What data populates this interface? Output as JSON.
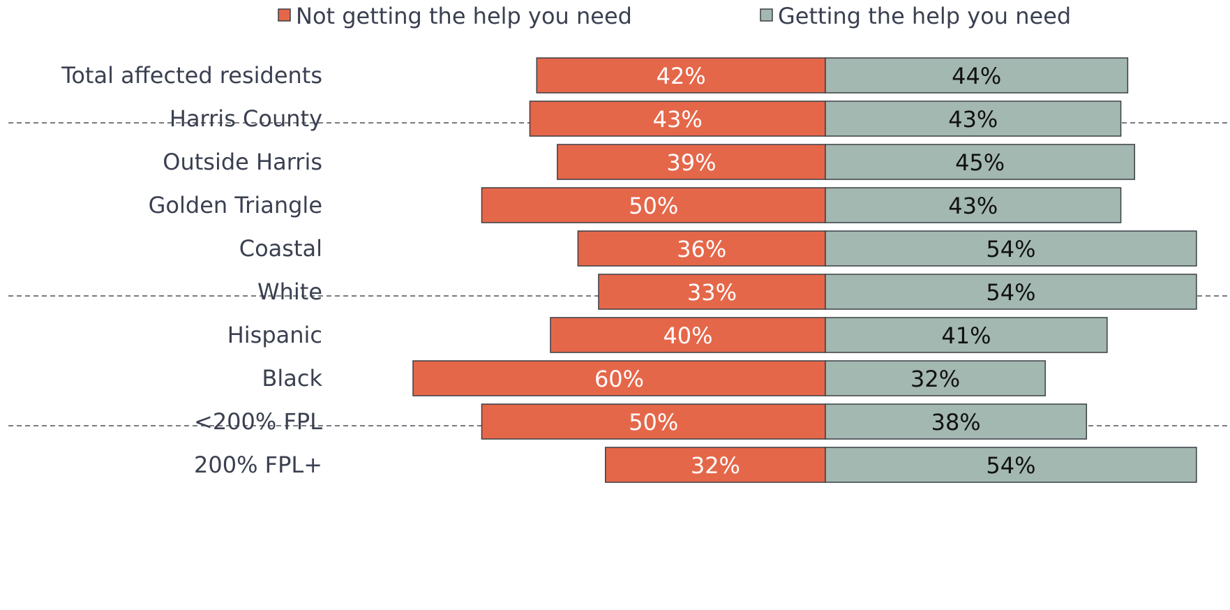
{
  "chart_data": {
    "type": "bar",
    "orientation": "horizontal-diverging",
    "legend": {
      "position": "top",
      "items": [
        {
          "label": "Not getting the help you need",
          "color": "#e5674a"
        },
        {
          "label": "Getting the help you need",
          "color": "#a3b8b0"
        }
      ]
    },
    "categories": [
      "Total affected residents",
      "Harris County",
      "Outside Harris",
      "Golden Triangle",
      "Coastal",
      "White",
      "Hispanic",
      "Black",
      "<200% FPL",
      "200% FPL+"
    ],
    "groups": [
      [
        0
      ],
      [
        1,
        2,
        3,
        4
      ],
      [
        5,
        6,
        7
      ],
      [
        8,
        9
      ]
    ],
    "series": [
      {
        "name": "Not getting the help you need",
        "values": [
          42,
          43,
          39,
          50,
          36,
          33,
          40,
          60,
          50,
          32
        ],
        "labels": [
          "42%",
          "43%",
          "39%",
          "50%",
          "36%",
          "33%",
          "40%",
          "60%",
          "50%",
          "32%"
        ]
      },
      {
        "name": "Getting the help you need",
        "values": [
          44,
          43,
          45,
          43,
          54,
          54,
          41,
          32,
          38,
          54
        ],
        "labels": [
          "44%",
          "43%",
          "45%",
          "43%",
          "54%",
          "54%",
          "41%",
          "32%",
          "38%",
          "54%"
        ]
      }
    ],
    "unit": "%",
    "grid": false,
    "group_separators": "dashed"
  },
  "colors": {
    "negative": "#e5674a",
    "positive": "#a3b8b0",
    "bar_stroke": "#3a3f44",
    "label_text": "#3a4050",
    "separator": "#4a4f57"
  }
}
